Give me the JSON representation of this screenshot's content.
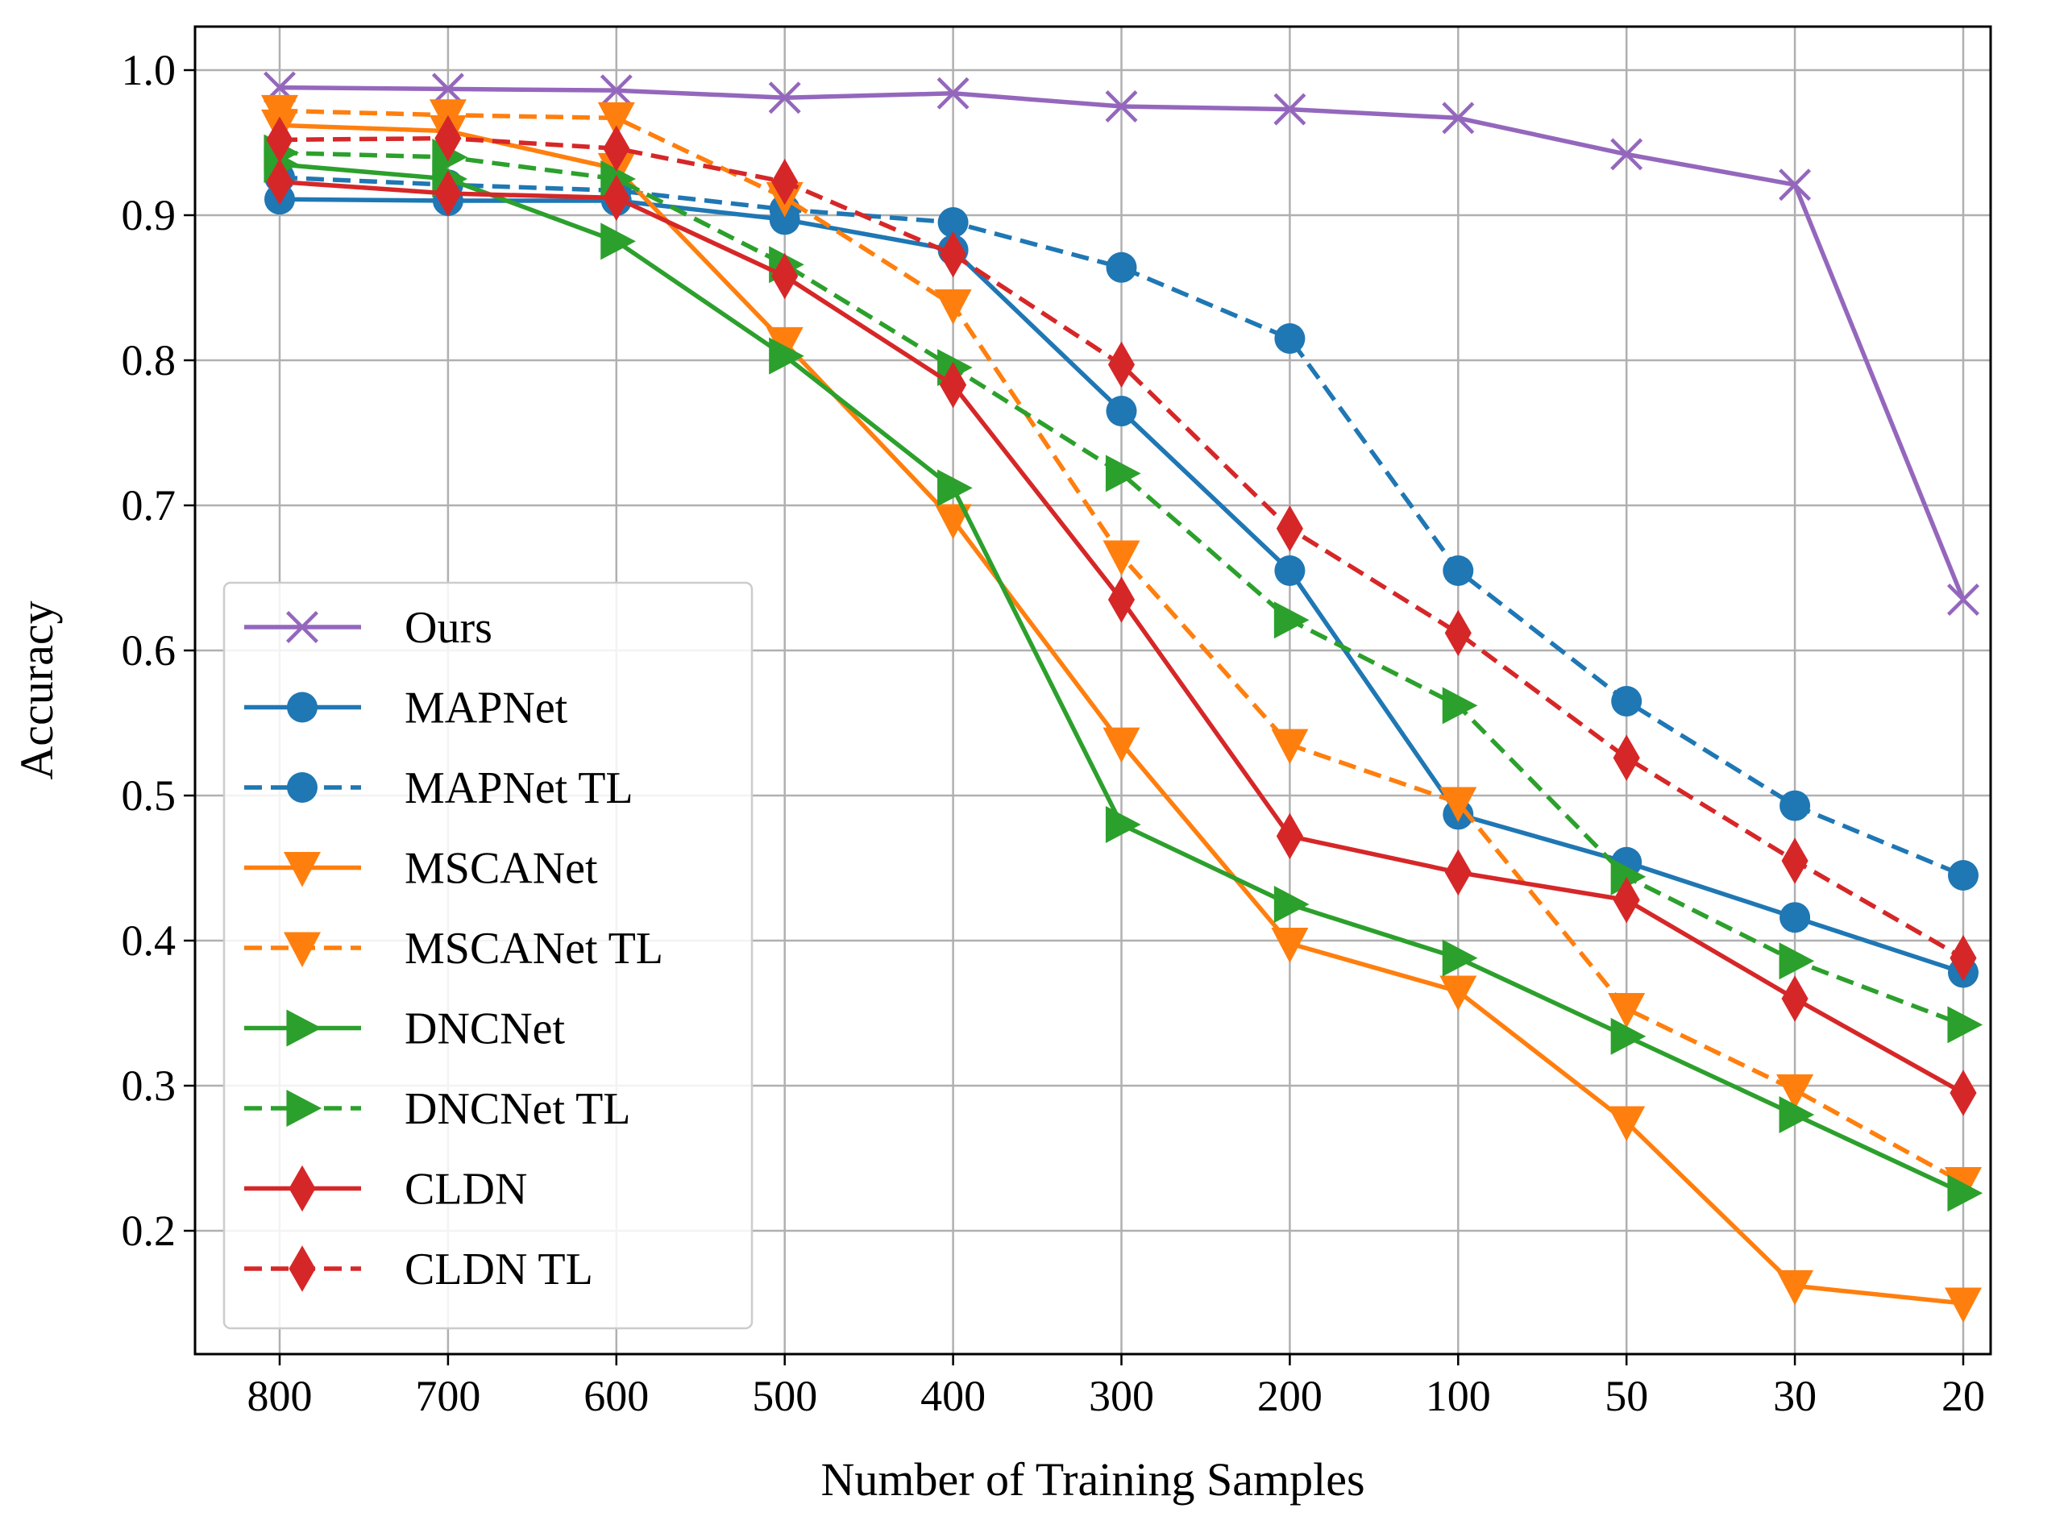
{
  "chart_data": {
    "type": "line",
    "title": "",
    "xlabel": "Number of Training Samples",
    "ylabel": "Accuracy",
    "x": [
      "800",
      "700",
      "600",
      "500",
      "400",
      "300",
      "200",
      "100",
      "50",
      "30",
      "20"
    ],
    "y_ticks": [
      "0.2",
      "0.3",
      "0.4",
      "0.5",
      "0.6",
      "0.7",
      "0.8",
      "0.9",
      "1.0"
    ],
    "ylim": [
      0.115,
      1.03
    ],
    "grid": true,
    "legend": "lower-left",
    "series": [
      {
        "name": "Ours",
        "color": "#9467bd",
        "marker": "x",
        "dashed": false,
        "values": [
          0.988,
          0.987,
          0.986,
          0.981,
          0.984,
          0.975,
          0.973,
          0.967,
          0.942,
          0.921,
          0.635
        ]
      },
      {
        "name": "MAPNet",
        "color": "#1f77b4",
        "marker": "circle",
        "dashed": false,
        "values": [
          0.911,
          0.91,
          0.91,
          0.897,
          0.876,
          0.765,
          0.655,
          0.487,
          0.454,
          0.416,
          0.378
        ]
      },
      {
        "name": "MAPNet TL",
        "color": "#1f77b4",
        "marker": "circle",
        "dashed": true,
        "values": [
          0.926,
          0.921,
          0.917,
          0.904,
          0.895,
          0.864,
          0.815,
          0.655,
          0.565,
          0.493,
          0.445
        ]
      },
      {
        "name": "MSCANet",
        "color": "#ff7f0e",
        "marker": "triangle-down",
        "dashed": false,
        "values": [
          0.962,
          0.958,
          0.932,
          0.812,
          0.69,
          0.536,
          0.398,
          0.365,
          0.275,
          0.162,
          0.15
        ]
      },
      {
        "name": "MSCANet TL",
        "color": "#ff7f0e",
        "marker": "triangle-down",
        "dashed": true,
        "values": [
          0.972,
          0.969,
          0.967,
          0.912,
          0.838,
          0.665,
          0.535,
          0.495,
          0.353,
          0.297,
          0.233
        ]
      },
      {
        "name": "DNCNet",
        "color": "#2ca02c",
        "marker": "triangle-right",
        "dashed": false,
        "values": [
          0.935,
          0.925,
          0.882,
          0.803,
          0.712,
          0.48,
          0.425,
          0.388,
          0.334,
          0.28,
          0.226
        ]
      },
      {
        "name": "DNCNet TL",
        "color": "#2ca02c",
        "marker": "triangle-right",
        "dashed": true,
        "values": [
          0.943,
          0.94,
          0.925,
          0.866,
          0.795,
          0.722,
          0.621,
          0.562,
          0.444,
          0.386,
          0.342
        ]
      },
      {
        "name": "CLDN",
        "color": "#d62728",
        "marker": "diamond",
        "dashed": false,
        "values": [
          0.923,
          0.915,
          0.912,
          0.858,
          0.783,
          0.635,
          0.472,
          0.447,
          0.428,
          0.36,
          0.295
        ]
      },
      {
        "name": "CLDN TL",
        "color": "#d62728",
        "marker": "diamond",
        "dashed": true,
        "values": [
          0.952,
          0.953,
          0.946,
          0.923,
          0.873,
          0.797,
          0.684,
          0.612,
          0.526,
          0.455,
          0.388
        ]
      }
    ]
  }
}
